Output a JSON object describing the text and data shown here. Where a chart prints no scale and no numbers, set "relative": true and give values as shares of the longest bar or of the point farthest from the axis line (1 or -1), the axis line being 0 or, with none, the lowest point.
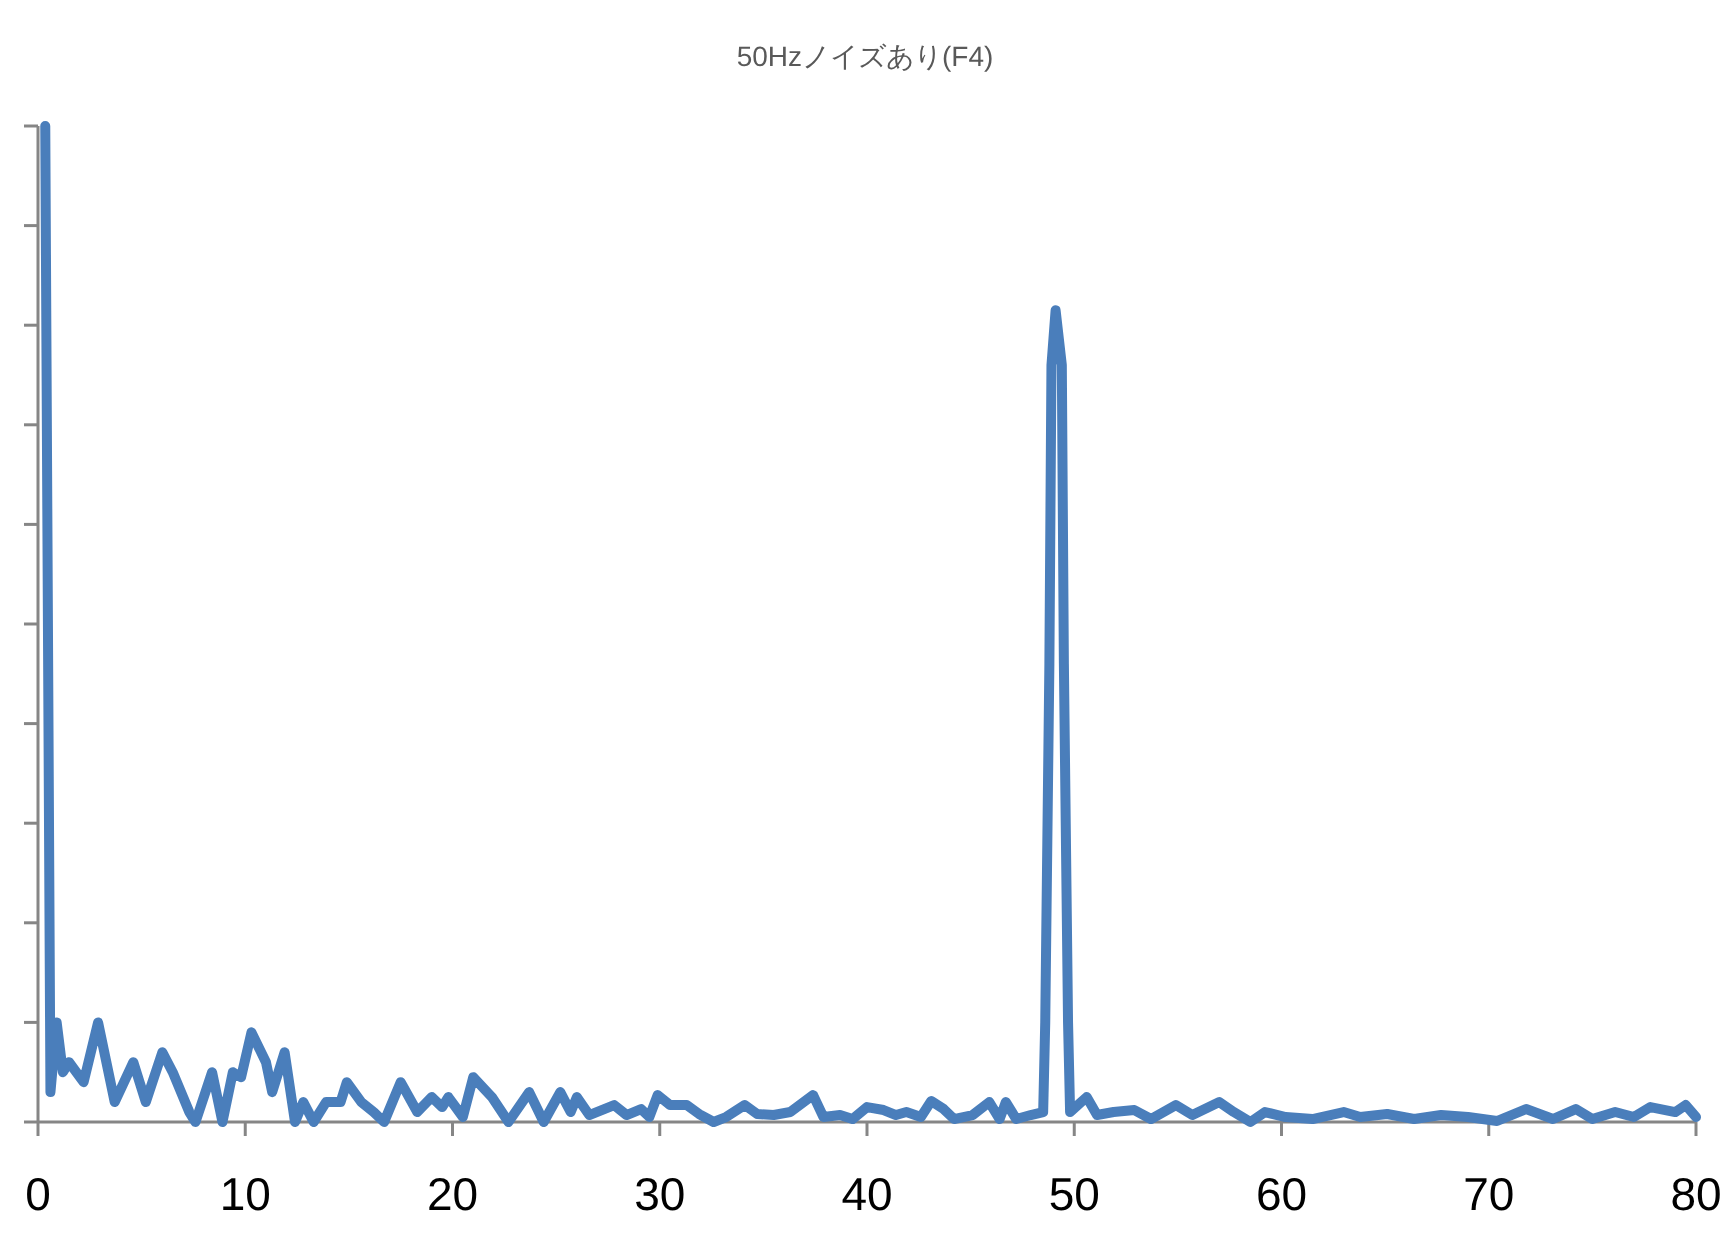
{
  "chart_data": {
    "type": "line",
    "title": "50Hzノイズあり(F4)",
    "relative": true,
    "xlim": [
      0,
      80
    ],
    "xticks": [
      0,
      10,
      20,
      30,
      40,
      50,
      60,
      70,
      80
    ],
    "x": [
      0.35,
      0.6,
      0.9,
      1.2,
      1.5,
      2.2,
      2.9,
      3.7,
      4.6,
      5.2,
      6.0,
      6.5,
      7.3,
      7.6,
      8.4,
      8.9,
      9.4,
      9.8,
      10.3,
      11.0,
      11.3,
      11.9,
      12.4,
      12.8,
      13.3,
      13.9,
      14.6,
      14.9,
      15.6,
      16.2,
      16.7,
      17.5,
      18.3,
      19.0,
      19.5,
      19.8,
      20.5,
      21.0,
      21.9,
      22.7,
      23.7,
      24.4,
      25.2,
      25.7,
      26.0,
      26.6,
      27.8,
      28.4,
      29.1,
      29.5,
      29.9,
      30.5,
      31.3,
      31.9,
      32.6,
      33.2,
      34.1,
      34.7,
      35.5,
      36.3,
      37.4,
      37.9,
      38.7,
      39.3,
      40.0,
      40.8,
      41.4,
      41.9,
      42.6,
      43.1,
      43.7,
      44.2,
      45.1,
      45.9,
      46.4,
      46.7,
      47.2,
      47.9,
      48.5,
      48.6,
      48.8,
      48.9,
      49.1,
      49.4,
      49.5,
      49.7,
      49.8,
      50.6,
      51.1,
      51.9,
      52.9,
      53.7,
      54.9,
      55.7,
      57.0,
      57.7,
      58.5,
      59.2,
      60.2,
      61.5,
      63.0,
      63.8,
      65.1,
      66.4,
      67.7,
      69.0,
      70.4,
      71.8,
      73.1,
      74.2,
      75.0,
      76.1,
      77.0,
      77.8,
      79.0,
      79.5,
      80.0
    ],
    "series": [
      {
        "color": "#4a7ebb",
        "values": [
          1.0,
          0.03,
          0.1,
          0.05,
          0.06,
          0.04,
          0.1,
          0.02,
          0.06,
          0.02,
          0.07,
          0.05,
          0.01,
          0.0,
          0.05,
          0.0,
          0.05,
          0.045,
          0.09,
          0.06,
          0.03,
          0.07,
          0.0,
          0.02,
          0.0,
          0.02,
          0.02,
          0.04,
          0.02,
          0.01,
          0.0,
          0.04,
          0.01,
          0.025,
          0.015,
          0.025,
          0.005,
          0.045,
          0.025,
          0.0,
          0.03,
          0.0,
          0.03,
          0.01,
          0.025,
          0.007,
          0.017,
          0.007,
          0.013,
          0.005,
          0.027,
          0.017,
          0.017,
          0.008,
          0.0,
          0.005,
          0.017,
          0.008,
          0.007,
          0.01,
          0.027,
          0.005,
          0.007,
          0.003,
          0.015,
          0.012,
          0.007,
          0.01,
          0.005,
          0.021,
          0.013,
          0.003,
          0.007,
          0.02,
          0.003,
          0.02,
          0.003,
          0.007,
          0.01,
          0.1,
          0.46,
          0.76,
          0.815,
          0.76,
          0.46,
          0.1,
          0.01,
          0.025,
          0.007,
          0.01,
          0.012,
          0.003,
          0.017,
          0.007,
          0.02,
          0.01,
          0.0,
          0.01,
          0.005,
          0.003,
          0.01,
          0.005,
          0.008,
          0.003,
          0.007,
          0.005,
          0.001,
          0.013,
          0.003,
          0.013,
          0.003,
          0.01,
          0.005,
          0.015,
          0.01,
          0.017,
          0.005
        ]
      }
    ]
  }
}
